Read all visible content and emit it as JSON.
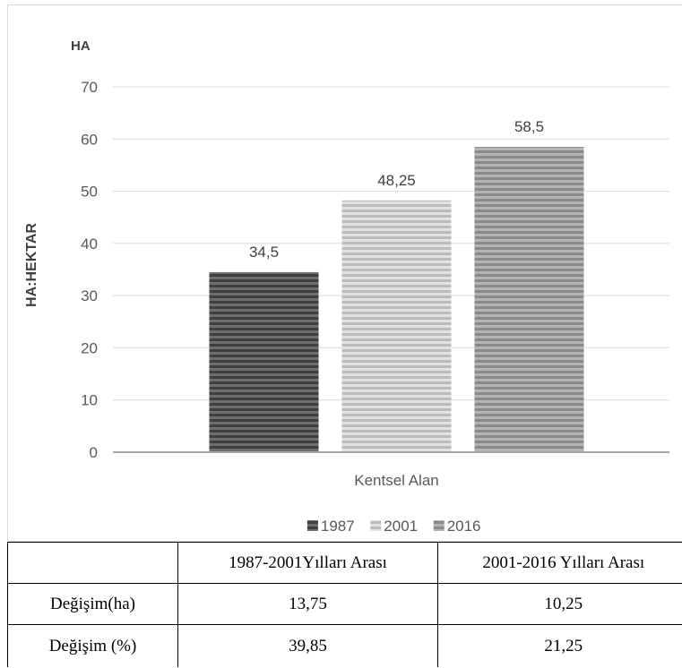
{
  "chart_data": {
    "type": "bar",
    "unit_label": "HA",
    "ylabel": "HA:HEKTAR",
    "xlabel": "",
    "categories": [
      "Kentsel Alan"
    ],
    "series": [
      {
        "name": "1987",
        "values": [
          34.5
        ],
        "label": "34,5",
        "color": "#555555"
      },
      {
        "name": "2001",
        "values": [
          48.25
        ],
        "label": "48,25",
        "color": "#c8c8c8"
      },
      {
        "name": "2016",
        "values": [
          58.5
        ],
        "label": "58,5",
        "color": "#999999"
      }
    ],
    "ylim": [
      0,
      70
    ],
    "yticks": [
      0,
      10,
      20,
      30,
      40,
      50,
      60,
      70
    ],
    "grid": true,
    "legend_position": "bottom"
  },
  "table": {
    "headers": [
      "",
      "1987-2001Yılları Arası",
      "2001-2016 Yılları Arası"
    ],
    "rows": [
      [
        "Değişim(ha)",
        "13,75",
        "10,25"
      ],
      [
        "Değişim (%)",
        "39,85",
        "21,25"
      ]
    ]
  }
}
